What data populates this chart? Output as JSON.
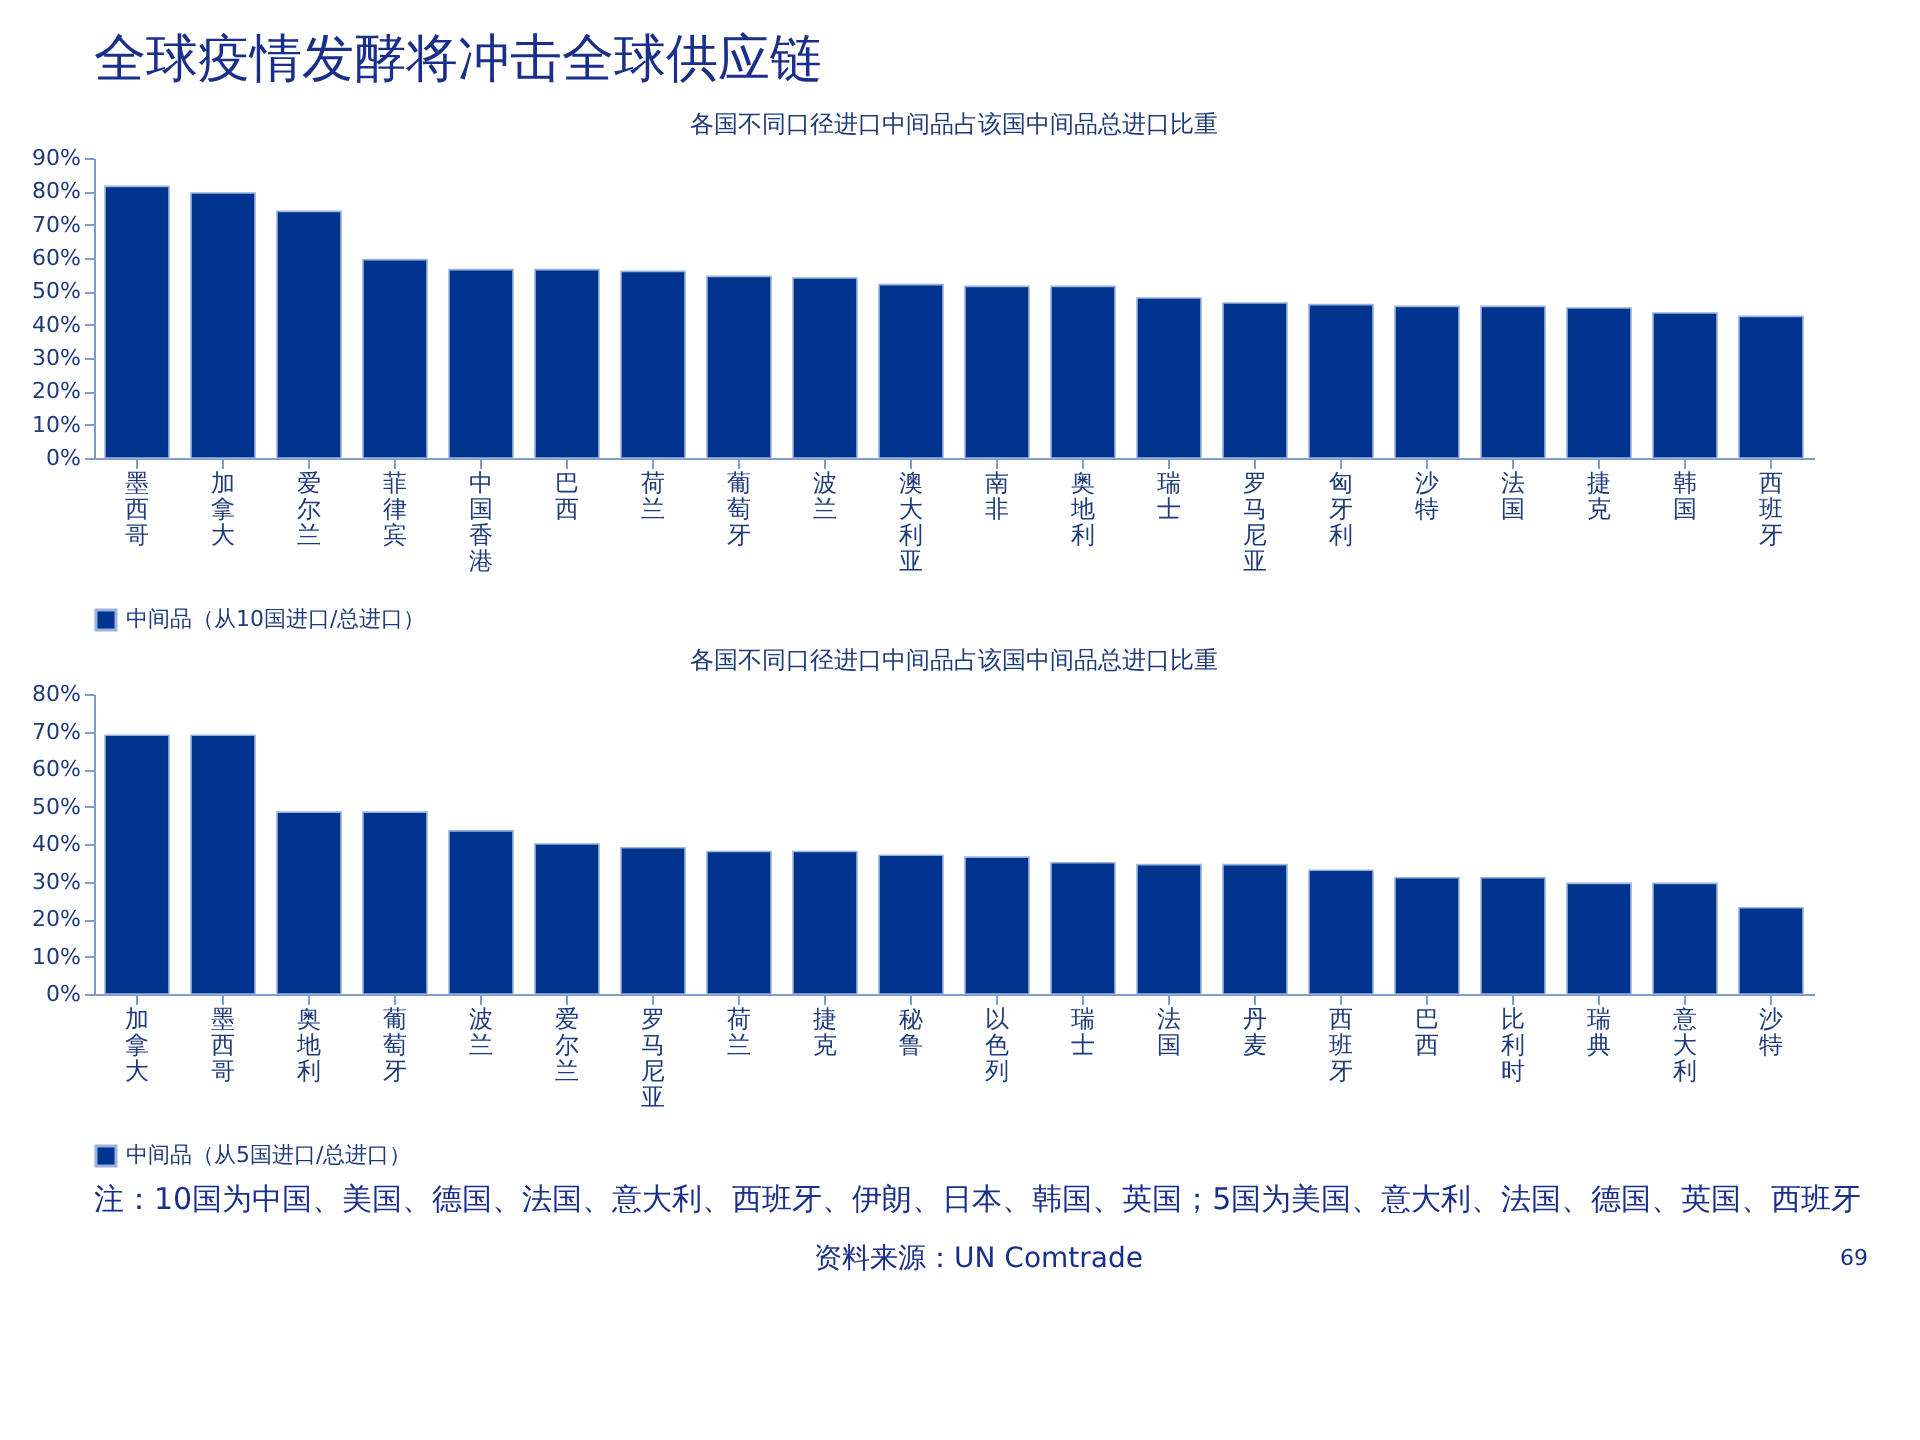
{
  "chart_data": [
    {
      "type": "bar",
      "title": "各国不同口径进口中间品占该国中间品总进口比重",
      "annotations": [
        "全球疫情发酵将冲击全球供应链"
      ],
      "categories": [
        "墨西哥",
        "加拿大",
        "爱尔兰",
        "菲律宾",
        "中国香港",
        "巴西",
        "荷兰",
        "葡萄牙",
        "波兰",
        "澳大利亚",
        "南非",
        "奥地利",
        "瑞士",
        "罗马尼亚",
        "匈牙利",
        "沙特",
        "法国",
        "捷克",
        "韩国",
        "西班牙"
      ],
      "series": [
        {
          "name": "中间品（从10国进口/总进口）",
          "color": "#00338d",
          "values": [
            81.5,
            79.5,
            74,
            59.5,
            56.5,
            56.5,
            56,
            54.5,
            54,
            52,
            51.5,
            51.5,
            48,
            46.5,
            46,
            45.5,
            45.5,
            45,
            43.5,
            42.5
          ]
        }
      ],
      "ylim": [
        0,
        90
      ],
      "yticks": [
        {
          "value": 0,
          "label": "0%"
        },
        {
          "value": 10,
          "label": "10%"
        },
        {
          "value": 20,
          "label": "20%"
        },
        {
          "value": 30,
          "label": "30%"
        },
        {
          "value": 40,
          "label": "40%"
        },
        {
          "value": 50,
          "label": "50%"
        },
        {
          "value": 60,
          "label": "60%"
        },
        {
          "value": 70,
          "label": "70%"
        },
        {
          "value": 80,
          "label": "80%"
        },
        {
          "value": 90,
          "label": "90%"
        }
      ],
      "legend": "bottom"
    },
    {
      "type": "bar",
      "title": "各国不同口径进口中间品占该国中间品总进口比重",
      "annotations": [
        "注：10国为中国、美国、德国、法国、意大利、西班牙、伊朗、日本、韩国、英国；5国为美国、意大利、法国、德国、英国、西班牙",
        "资料来源：UN Comtrade",
        "69"
      ],
      "categories": [
        "加拿大",
        "墨西哥",
        "奥地利",
        "葡萄牙",
        "波兰",
        "爱尔兰",
        "罗马尼亚",
        "荷兰",
        "捷克",
        "秘鲁",
        "以色列",
        "瑞士",
        "法国",
        "丹麦",
        "西班牙",
        "巴西",
        "比利时",
        "瑞典",
        "意大利",
        "沙特"
      ],
      "series": [
        {
          "name": "中间品（从5国进口/总进口）",
          "color": "#00338d",
          "values": [
            69,
            69,
            48.5,
            48.5,
            43.5,
            40,
            39,
            38,
            38,
            37,
            36.5,
            35,
            34.5,
            34.5,
            33,
            31,
            31,
            29.5,
            29.5,
            23
          ]
        }
      ],
      "ylim": [
        0,
        80
      ],
      "yticks": [
        {
          "value": 0,
          "label": "0%"
        },
        {
          "value": 10,
          "label": "10%"
        },
        {
          "value": 20,
          "label": "20%"
        },
        {
          "value": 30,
          "label": "30%"
        },
        {
          "value": 40,
          "label": "40%"
        },
        {
          "value": 50,
          "label": "50%"
        },
        {
          "value": 60,
          "label": "60%"
        },
        {
          "value": 70,
          "label": "70%"
        },
        {
          "value": 80,
          "label": "80%"
        }
      ],
      "legend": "bottom"
    }
  ]
}
